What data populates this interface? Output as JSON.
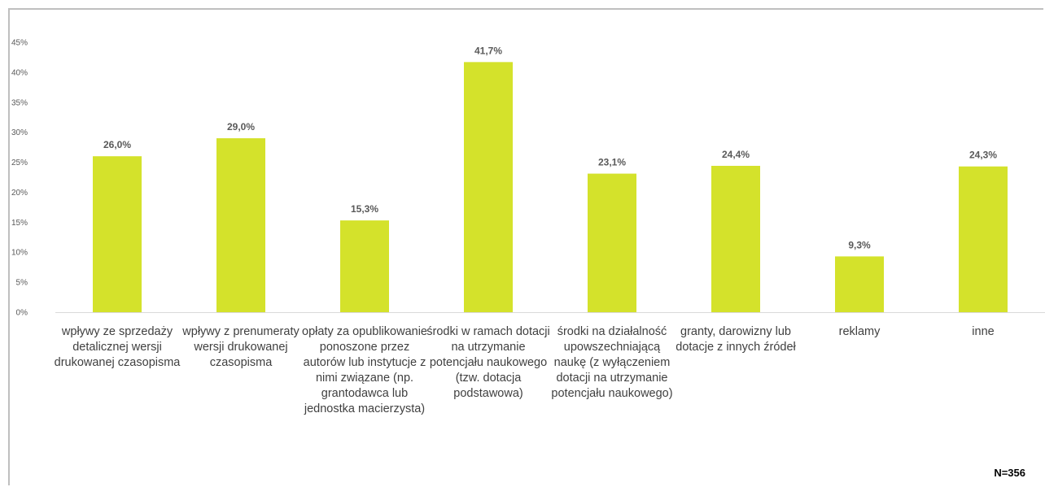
{
  "chart_data": {
    "type": "bar",
    "categories": [
      "wpływy ze sprzedaży detalicznej wersji drukowanej czasopisma",
      "wpływy z prenumeraty wersji drukowanej czasopisma",
      "opłaty za opublikowanie ponoszone przez autorów lub instytucje z nimi związane (np. grantodawca lub jednostka macierzysta)",
      "środki w ramach dotacji na utrzymanie potencjału naukowego (tzw. dotacja podstawowa)",
      "środki na działalność upowszechniającą naukę (z wyłączeniem dotacji na utrzymanie potencjału naukowego)",
      "granty, darowizny lub dotacje z innych źródeł",
      "reklamy",
      "inne"
    ],
    "values": [
      26.0,
      29.0,
      15.3,
      41.7,
      23.1,
      24.4,
      9.3,
      24.3
    ],
    "data_labels": [
      "26,0%",
      "29,0%",
      "15,3%",
      "41,7%",
      "23,1%",
      "24,4%",
      "9,3%",
      "24,3%"
    ],
    "yticks": [
      "0%",
      "5%",
      "10%",
      "15%",
      "20%",
      "25%",
      "30%",
      "35%",
      "40%",
      "45%"
    ],
    "ylim": [
      0,
      45
    ],
    "title": "",
    "xlabel": "",
    "ylabel": "",
    "grid": false,
    "bar_color": "#d4e22b",
    "axis_color": "#d9d9d9",
    "note": "N=356"
  }
}
